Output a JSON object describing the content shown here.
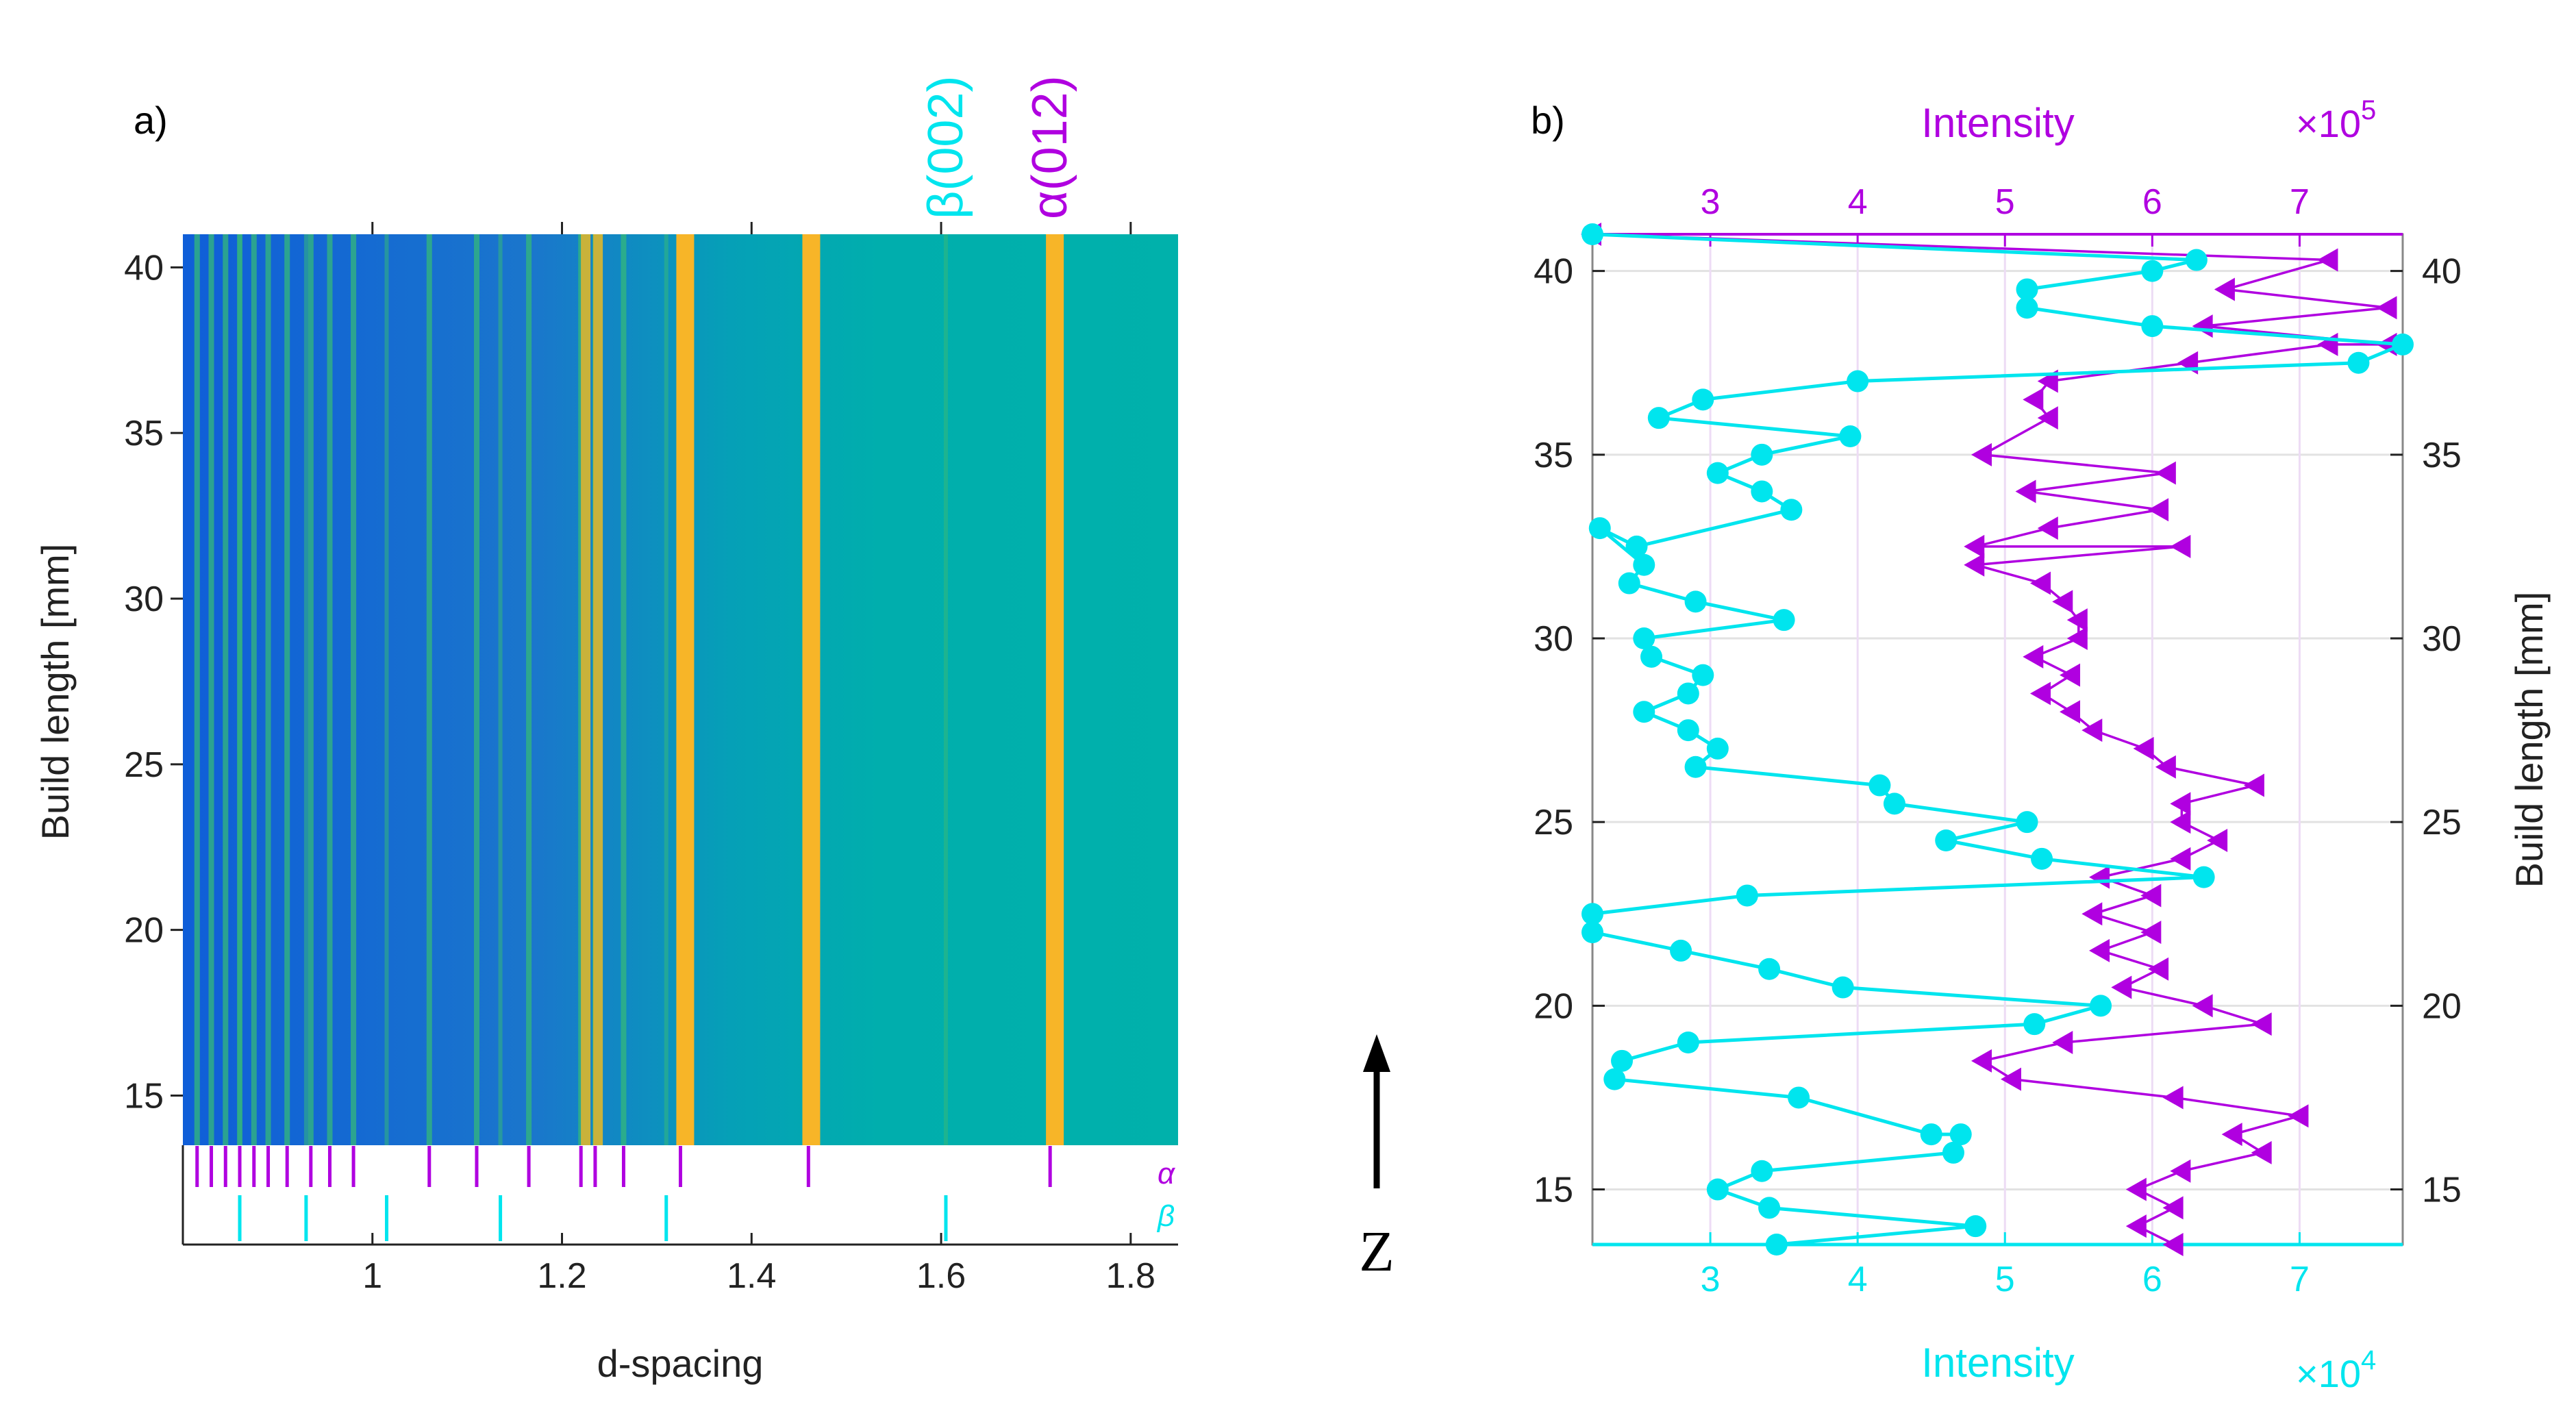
{
  "panel_a": {
    "label": "a)",
    "xlabel": "d-spacing",
    "ylabel": "Build length [mm]",
    "peak_labels": [
      {
        "text": "β(002)",
        "d": 1.605,
        "color": "#00e5ee"
      },
      {
        "text": "α(012)",
        "d": 1.715,
        "color": "#b000e0"
      }
    ],
    "marker_labels": {
      "alpha": "α",
      "beta": "β"
    }
  },
  "panel_b": {
    "label": "b)",
    "top_xlabel": "Intensity",
    "top_multiplier_base": "×10",
    "top_multiplier_exp": "5",
    "bottom_xlabel": "Intensity",
    "bottom_multiplier_base": "×10",
    "bottom_multiplier_exp": "4",
    "right_ylabel": "Build length [mm]"
  },
  "arrow": {
    "label": "Z"
  },
  "colors": {
    "alpha": "#b000e0",
    "beta": "#00e5ee",
    "map_bg": "#00aead",
    "map_low": "#0f62d6",
    "map_peak": "#f7b528",
    "map_green": "#34b87a"
  },
  "chart_data": [
    {
      "type": "heatmap",
      "title": "",
      "xlabel": "d-spacing",
      "ylabel": "Build length [mm]",
      "xlim": [
        0.8,
        1.85
      ],
      "ylim": [
        13.5,
        41
      ],
      "xticks": [
        1,
        1.2,
        1.4,
        1.6,
        1.8
      ],
      "xtick_labels": [
        "1",
        "1.2",
        "1.4",
        "1.6",
        "1.8"
      ],
      "yticks": [
        15,
        20,
        25,
        30,
        35,
        40
      ],
      "ytick_labels": [
        "15",
        "20",
        "25",
        "30",
        "35",
        "40"
      ],
      "strong_peaks_d": [
        1.33,
        1.463,
        1.72
      ],
      "medium_peaks_d": [
        1.225,
        1.238
      ],
      "alpha_reflections_d": [
        0.815,
        0.83,
        0.845,
        0.86,
        0.875,
        0.89,
        0.91,
        0.935,
        0.955,
        0.98,
        1.06,
        1.11,
        1.165,
        1.22,
        1.235,
        1.265,
        1.325,
        1.46,
        1.715
      ],
      "beta_reflections_d": [
        0.86,
        0.93,
        1.015,
        1.135,
        1.31,
        1.605
      ]
    },
    {
      "type": "line",
      "title": "",
      "ylabel": "Build length [mm]",
      "ylim": [
        13.5,
        41
      ],
      "yticks": [
        15,
        20,
        25,
        30,
        35,
        40
      ],
      "ytick_labels": [
        "15",
        "20",
        "25",
        "30",
        "35",
        "40"
      ],
      "top_axis": {
        "xlabel": "Intensity",
        "xlim": [
          2.2,
          7.7
        ],
        "xticks": [
          3,
          4,
          5,
          6,
          7
        ],
        "xtick_labels": [
          "3",
          "4",
          "5",
          "6",
          "7"
        ],
        "multiplier": "×10^5"
      },
      "bottom_axis": {
        "xlabel": "Intensity",
        "xlim": [
          2.2,
          7.7
        ],
        "xticks": [
          3,
          4,
          5,
          6,
          7
        ],
        "xtick_labels": [
          "3",
          "4",
          "5",
          "6",
          "7"
        ],
        "multiplier": "×10^4"
      },
      "series": [
        {
          "name": "α(012)",
          "axis": "top",
          "marker": "triangle-left",
          "color": "#b000e0",
          "x": [
            2.2,
            7.2,
            6.5,
            7.6,
            6.35,
            7.6,
            7.2,
            6.25,
            5.3,
            5.2,
            5.3,
            4.85,
            6.1,
            5.15,
            6.05,
            5.3,
            4.8,
            6.2,
            4.8,
            5.25,
            5.4,
            5.5,
            5.5,
            5.2,
            5.45,
            5.25,
            5.45,
            5.6,
            5.95,
            6.1,
            6.7,
            6.2,
            6.2,
            6.45,
            6.2,
            5.65,
            6.0,
            5.6,
            6.0,
            5.65,
            6.05,
            5.8,
            6.35,
            6.75,
            5.4,
            4.85,
            5.05,
            6.15,
            7.0,
            6.55,
            6.75,
            6.2,
            5.9,
            6.15,
            5.9,
            6.15
          ],
          "y": [
            41,
            40.3,
            39.5,
            39,
            38.5,
            38,
            38,
            37.5,
            37,
            36.5,
            36,
            35,
            34.5,
            34,
            33.5,
            33,
            32.5,
            32.5,
            32,
            31.5,
            31,
            30.5,
            30,
            29.5,
            29,
            28.5,
            28,
            27.5,
            27,
            26.5,
            26,
            25.5,
            25,
            24.5,
            24,
            23.5,
            23,
            22.5,
            22,
            21.5,
            21,
            20.5,
            20,
            19.5,
            19,
            18.5,
            18,
            17.5,
            17,
            16.5,
            16,
            15.5,
            15,
            14.5,
            14,
            13.5
          ]
        },
        {
          "name": "β(002)",
          "axis": "bottom",
          "marker": "circle",
          "color": "#00e5ee",
          "x": [
            2.2,
            6.3,
            6.0,
            5.15,
            5.15,
            6.0,
            7.7,
            7.4,
            4.0,
            2.95,
            2.65,
            3.95,
            3.35,
            3.05,
            3.35,
            3.55,
            2.5,
            2.25,
            2.55,
            2.45,
            2.9,
            3.5,
            2.55,
            2.6,
            2.95,
            2.85,
            2.55,
            2.85,
            3.05,
            2.9,
            4.15,
            4.25,
            5.15,
            4.6,
            5.25,
            6.35,
            3.25,
            2.2,
            2.2,
            2.8,
            3.4,
            3.9,
            5.65,
            5.2,
            2.85,
            2.4,
            2.35,
            3.6,
            4.5,
            4.7,
            4.65,
            3.35,
            3.05,
            3.4,
            4.8,
            3.45
          ],
          "y": [
            41,
            40.3,
            40,
            39.5,
            39,
            38.5,
            38,
            37.5,
            37,
            36.5,
            36,
            35.5,
            35,
            34.5,
            34,
            33.5,
            32.5,
            33,
            32,
            31.5,
            31,
            30.5,
            30,
            29.5,
            29,
            28.5,
            28,
            27.5,
            27,
            26.5,
            26,
            25.5,
            25,
            24.5,
            24,
            23.5,
            23,
            22.5,
            22,
            21.5,
            21,
            20.5,
            20,
            19.5,
            19,
            18.5,
            18,
            17.5,
            16.5,
            16.5,
            16,
            15.5,
            15,
            14.5,
            14,
            13.5
          ]
        }
      ]
    }
  ]
}
